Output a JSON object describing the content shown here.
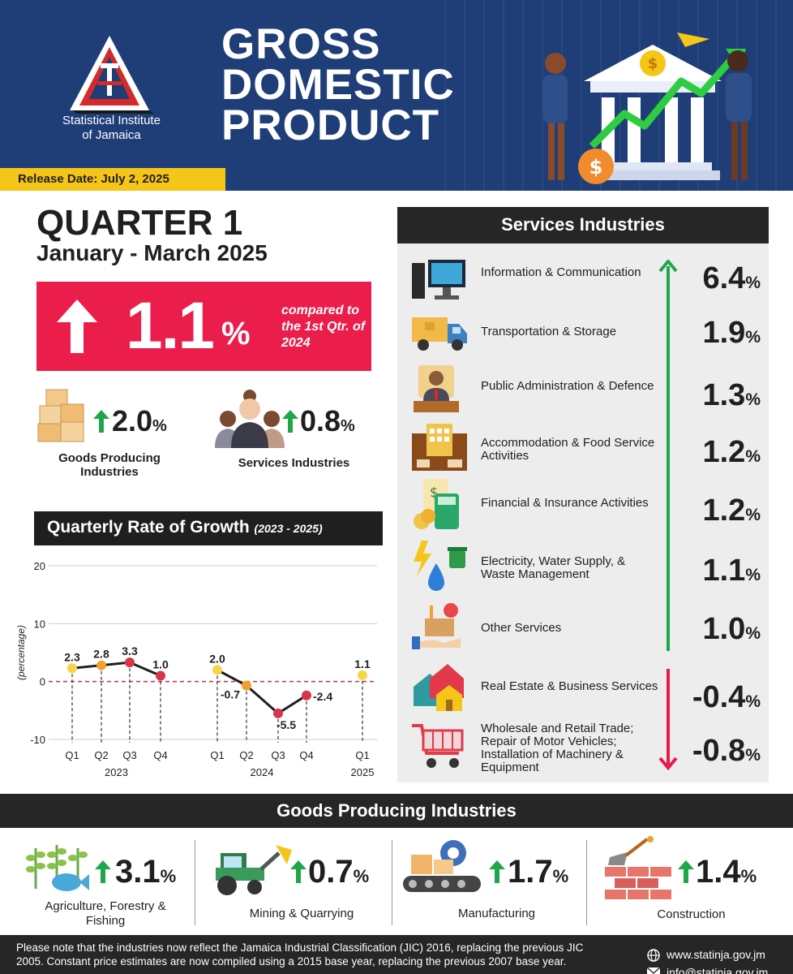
{
  "header": {
    "org_name_line1": "Statistical Institute",
    "org_name_line2": "of Jamaica",
    "title_line1": "GROSS",
    "title_line2": "DOMESTIC",
    "title_line3": "PRODUCT",
    "release_date": "Release Date: July 2, 2025"
  },
  "quarter": {
    "title": "QUARTER 1",
    "period": "January - March 2025",
    "headline_value": "1.1",
    "headline_unit": "%",
    "headline_compare": "compared to the 1st Qtr. of 2024"
  },
  "summary": {
    "goods_value": "2.0",
    "goods_unit": "%",
    "goods_label_line1": "Goods Producing",
    "goods_label_line2": "Industries",
    "services_value": "0.8",
    "services_unit": "%",
    "services_label": "Services Industries"
  },
  "chart_header": {
    "title": "Quarterly Rate of Growth",
    "years": "(2023 - 2025)"
  },
  "chart_data": {
    "type": "line",
    "ylabel": "(percentage)",
    "ylim": [
      -10,
      20
    ],
    "yticks": [
      "20",
      "10",
      "0",
      "-10"
    ],
    "groups": [
      {
        "year": "2023",
        "quarters": [
          "Q1",
          "Q2",
          "Q3",
          "Q4"
        ],
        "values": [
          2.3,
          2.8,
          3.3,
          1.0
        ],
        "labels": [
          "2.3",
          "2.8",
          "3.3",
          "1.0"
        ]
      },
      {
        "year": "2024",
        "quarters": [
          "Q1",
          "Q2",
          "Q3",
          "Q4"
        ],
        "values": [
          2.0,
          -0.7,
          -5.5,
          -2.4
        ],
        "labels": [
          "2.0",
          "-0.7",
          "-5.5",
          "-2.4"
        ]
      },
      {
        "year": "2025",
        "quarters": [
          "Q1"
        ],
        "values": [
          1.1
        ],
        "labels": [
          "1.1"
        ]
      }
    ],
    "colors": {
      "line": "#1f1f1f",
      "yellow": "#f5d547",
      "orange": "#f0a030",
      "red": "#d8344a",
      "zero_line": "#c0304e"
    }
  },
  "services": {
    "header": "Services Industries",
    "unit": "%",
    "items": [
      {
        "label": "Information & Communication",
        "value": "6.4",
        "icon": "computer-icon"
      },
      {
        "label": "Transportation & Storage",
        "value": "1.9",
        "icon": "truck-icon"
      },
      {
        "label": "Public Administration & Defence",
        "value": "1.3",
        "icon": "official-icon"
      },
      {
        "label": "Accommodation & Food Service Activities",
        "value": "1.2",
        "icon": "hotel-icon"
      },
      {
        "label": "Financial & Insurance Activities",
        "value": "1.2",
        "icon": "calculator-icon"
      },
      {
        "label": "Electricity, Water Supply, & Waste Management",
        "value": "1.1",
        "icon": "utilities-icon"
      },
      {
        "label": "Other Services",
        "value": "1.0",
        "icon": "service-box-icon"
      },
      {
        "label": "Real Estate & Business Services",
        "value": "-0.4",
        "icon": "houses-icon"
      },
      {
        "label": "Wholesale and Retail Trade; Repair of Motor Vehicles; Installation of Machinery & Equipment",
        "value": "-0.8",
        "icon": "shopping-cart-icon"
      }
    ]
  },
  "goods": {
    "header": "Goods Producing Industries",
    "unit": "%",
    "items": [
      {
        "label": "Agriculture, Forestry & Fishing",
        "value": "3.1",
        "icon": "agriculture-icon"
      },
      {
        "label": "Mining & Quarrying",
        "value": "0.7",
        "icon": "tractor-icon"
      },
      {
        "label": "Manufacturing",
        "value": "1.7",
        "icon": "conveyor-icon"
      },
      {
        "label": "Construction",
        "value": "1.4",
        "icon": "bricks-icon"
      }
    ]
  },
  "footer": {
    "note": "Please note that the industries now reflect the Jamaica Industrial Classification (JIC) 2016, replacing the previous JIC 2005. Constant price estimates are now compiled using a 2015 base year, replacing the previous 2007 base year.",
    "website": "www.statinja.gov.jm",
    "email": "info@statinja.gov.jm"
  }
}
